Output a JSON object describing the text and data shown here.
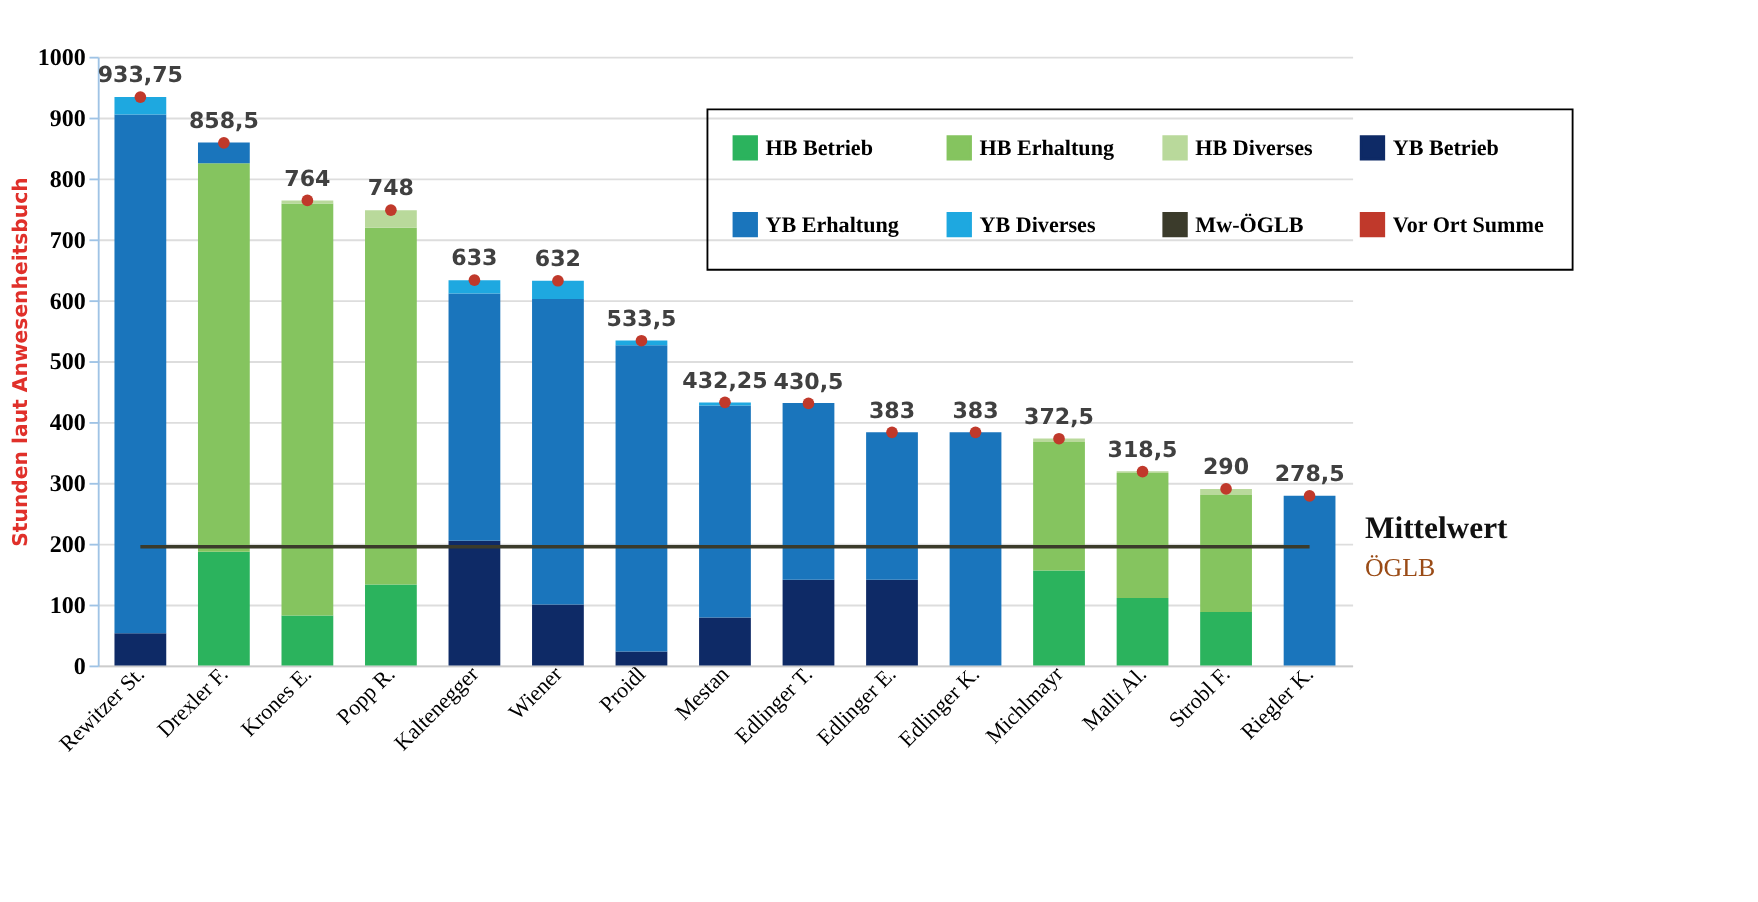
{
  "chart_data": {
    "type": "bar",
    "stacked": true,
    "ylabel": "Stunden laut Anwesenheitsbuch",
    "categories": [
      "Rewitzer St.",
      "Drexler F.",
      "Krones E.",
      "Popp R.",
      "Kaltenegger",
      "Wiener",
      "Proidl",
      "Mestan",
      "Edlinger T.",
      "Edlinger E.",
      "Edlinger K.",
      "Michlmayr",
      "Malli Al.",
      "Strobl F.",
      "Riegler K."
    ],
    "series": [
      {
        "name": "HB Betrieb",
        "color": "#2bb35d",
        "values": [
          null,
          187,
          82,
          133,
          null,
          null,
          null,
          null,
          null,
          null,
          null,
          156,
          111,
          88,
          null
        ]
      },
      {
        "name": "HB Erhaltung",
        "color": "#85c45f",
        "values": [
          null,
          638,
          677,
          586,
          null,
          null,
          null,
          null,
          null,
          null,
          null,
          211,
          205,
          192,
          null
        ]
      },
      {
        "name": "HB Diverses",
        "color": "#b9d99b",
        "values": [
          null,
          null,
          5,
          29,
          null,
          null,
          null,
          null,
          null,
          null,
          null,
          6,
          3,
          10,
          null
        ]
      },
      {
        "name": "YB Betrieb",
        "color": "#0e2a66",
        "values": [
          53,
          null,
          null,
          null,
          205,
          100,
          23,
          79,
          141,
          141,
          null,
          null,
          null,
          null,
          null
        ]
      },
      {
        "name": "YB Erhaltung",
        "color": "#1a75bc",
        "values": [
          852,
          34,
          null,
          null,
          406,
          502,
          503,
          348,
          290,
          242,
          383,
          null,
          null,
          null,
          279
        ]
      },
      {
        "name": "YB Diverses",
        "color": "#1ea8e0",
        "values": [
          29,
          null,
          null,
          null,
          22,
          30,
          8,
          5,
          null,
          null,
          null,
          null,
          null,
          null,
          null
        ]
      },
      {
        "name": "Mw-ÖGLB",
        "type": "line",
        "color": "#3b3b2b",
        "values": [
          195,
          195,
          195,
          195,
          195,
          195,
          195,
          195,
          195,
          195,
          195,
          195,
          195,
          195,
          195
        ]
      },
      {
        "name": "Vor Ort Summe",
        "type": "scatter",
        "marker": "circle",
        "color": "#c0392b",
        "values": [
          933.75,
          858.5,
          764,
          748,
          633,
          632,
          533.5,
          432.25,
          430.5,
          383,
          383,
          372.5,
          318.5,
          290,
          278.5
        ],
        "value_labels": [
          "933,75",
          "858,5",
          "764",
          "748",
          "633",
          "632",
          "533,5",
          "432,25",
          "430,5",
          "383",
          "383",
          "372,5",
          "318,5",
          "290",
          "278,5"
        ]
      }
    ],
    "annotations": [
      "Mittelwert",
      "ÖGLB"
    ],
    "ylim": [
      0,
      1000
    ],
    "yticks": [
      0,
      100,
      200,
      300,
      400,
      500,
      600,
      700,
      800,
      900,
      1000
    ],
    "grid": "y",
    "legend": "top right"
  }
}
